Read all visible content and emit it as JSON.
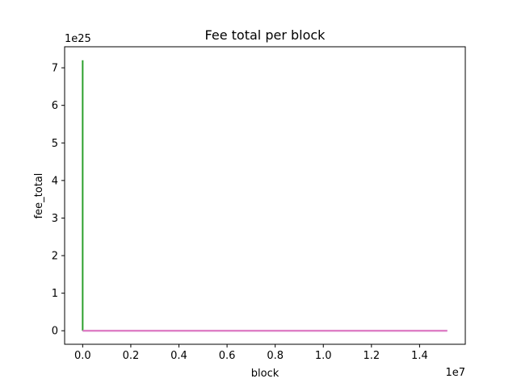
{
  "chart_data": {
    "type": "line",
    "title": "Fee total per block",
    "xlabel": "block",
    "ylabel": "fee_total",
    "x_offset_label": "1e7",
    "y_offset_label": "1e25",
    "xlim": [
      -750000,
      15900000
    ],
    "ylim": [
      -3.6e+24,
      7.56e+25
    ],
    "x_ticks": [
      0,
      2000000,
      4000000,
      6000000,
      8000000,
      10000000,
      12000000,
      14000000
    ],
    "x_tick_labels": [
      "0.0",
      "0.2",
      "0.4",
      "0.6",
      "0.8",
      "1.0",
      "1.2",
      "1.4"
    ],
    "y_ticks": [
      0,
      1e+25,
      2e+25,
      3e+25,
      4e+25,
      5e+25,
      6e+25,
      7e+25
    ],
    "y_tick_labels": [
      "0",
      "1",
      "2",
      "3",
      "4",
      "5",
      "6",
      "7"
    ],
    "grid": false,
    "legend": "none",
    "series": [
      {
        "color": "#2ca02c",
        "x": [
          0,
          0,
          0
        ],
        "y": [
          7.2e+25,
          0,
          0
        ]
      },
      {
        "color": "#9467bd",
        "x": [
          0,
          15150000
        ],
        "y": [
          0,
          0
        ]
      },
      {
        "color": "#e377c2",
        "x": [
          0,
          15150000
        ],
        "y": [
          0,
          0
        ]
      }
    ]
  }
}
